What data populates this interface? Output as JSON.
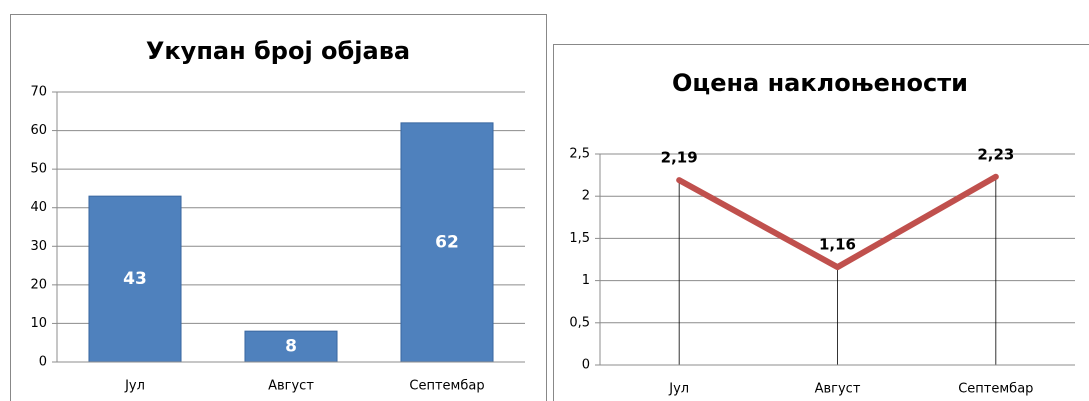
{
  "chart_data": [
    {
      "type": "bar",
      "title": "Укупан број објава",
      "categories": [
        "Јул",
        "Август",
        "Септембар"
      ],
      "values": [
        43,
        8,
        62
      ],
      "color": "#4f81bd",
      "ylim": [
        0,
        70
      ],
      "yticks": [
        0,
        10,
        20,
        30,
        40,
        50,
        60,
        70
      ],
      "grid": true
    },
    {
      "type": "line",
      "title": "Оцена наклоњености",
      "categories": [
        "Јул",
        "Август",
        "Септембар"
      ],
      "values": [
        2.19,
        1.16,
        2.23
      ],
      "value_labels": [
        "2,19",
        "1,16",
        "2,23"
      ],
      "color": "#c0504d",
      "ylim": [
        0,
        2.5
      ],
      "yticks": [
        0,
        {
          "value": 0.5,
          "label": "0,5"
        },
        1,
        {
          "value": 1.5,
          "label": "1,5"
        },
        2,
        {
          "value": 2.5,
          "label": "2,5"
        }
      ],
      "grid": true
    }
  ]
}
